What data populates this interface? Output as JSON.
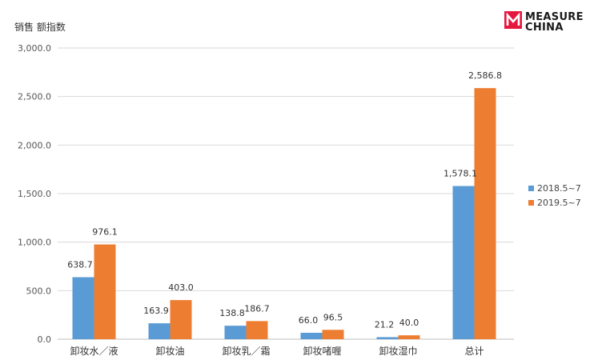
{
  "brand": {
    "line1": "MEASURE",
    "line2": "CHINA",
    "color": "#e5173f"
  },
  "chart_data": {
    "type": "bar",
    "ylabel": "销售 额指数",
    "ylim": [
      0,
      3000
    ],
    "yticks": [
      "0.0",
      "500.0",
      "1,000.0",
      "1,500.0",
      "2,000.0",
      "2,500.0",
      "3,000.0"
    ],
    "ytick_values": [
      0,
      500,
      1000,
      1500,
      2000,
      2500,
      3000
    ],
    "grid": true,
    "legend_position": "right",
    "categories": [
      "卸妆水／液",
      "卸妆油",
      "卸妆乳／霜",
      "卸妆啫喱",
      "卸妆湿巾",
      "总计"
    ],
    "series": [
      {
        "name": "2018.5~7",
        "color": "#5b9bd5",
        "values": [
          638.7,
          163.9,
          138.8,
          66.0,
          21.2,
          1578.1
        ],
        "labels": [
          "638.7",
          "163.9",
          "138.8",
          "66.0",
          "21.2",
          "1,578.1"
        ]
      },
      {
        "name": "2019.5~7",
        "color": "#ed7d31",
        "values": [
          976.1,
          403.0,
          186.7,
          96.5,
          40.0,
          2586.8
        ],
        "labels": [
          "976.1",
          "403.0",
          "186.7",
          "96.5",
          "40.0",
          "2,586.8"
        ]
      }
    ]
  }
}
